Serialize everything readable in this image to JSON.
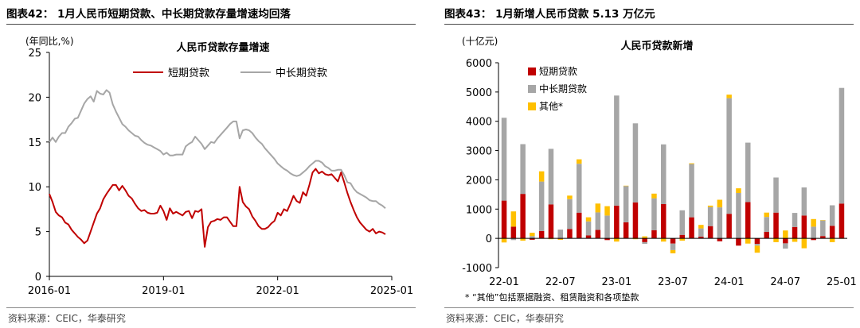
{
  "left_panel": {
    "heading": "图表42： 1月人民币短期贷款、中长期贷款存量增速均回落",
    "source": "资料来源：CEIC，华泰研究"
  },
  "right_panel": {
    "heading": "图表43： 1月新增人民币贷款 5.13 万亿元",
    "source": "资料来源：CEIC，华泰研究",
    "footnote": "* “其他”包括票据融资、租赁融资和各项垫款"
  },
  "colors": {
    "short": "#c00000",
    "long": "#a6a6a6",
    "other": "#ffc000",
    "axis": "#000000"
  },
  "chart_data": [
    {
      "type": "line",
      "title": "人民币贷款存量增速",
      "ylabel": "(年同比,%)",
      "xlabel": "",
      "x_unit": "months since 2016-01",
      "xlim": [
        0,
        108
      ],
      "ylim": [
        0,
        25
      ],
      "yticks": [
        0,
        5,
        10,
        15,
        20,
        25
      ],
      "xticks": [
        {
          "x": 0,
          "label": "2016-01"
        },
        {
          "x": 36,
          "label": "2019-01"
        },
        {
          "x": 72,
          "label": "2022-01"
        },
        {
          "x": 108,
          "label": "2025-01"
        }
      ],
      "grid": false,
      "legend": "top",
      "series": [
        {
          "name": "短期贷款",
          "color": "#c00000",
          "points": [
            [
              0,
              9.2
            ],
            [
              1,
              8.3
            ],
            [
              2,
              7.2
            ],
            [
              3,
              6.8
            ],
            [
              4,
              6.6
            ],
            [
              5,
              6.0
            ],
            [
              6,
              5.8
            ],
            [
              7,
              5.2
            ],
            [
              8,
              4.8
            ],
            [
              9,
              4.4
            ],
            [
              10,
              4.1
            ],
            [
              11,
              3.7
            ],
            [
              12,
              4.0
            ],
            [
              13,
              5.0
            ],
            [
              14,
              6.0
            ],
            [
              15,
              7.0
            ],
            [
              16,
              7.6
            ],
            [
              17,
              8.6
            ],
            [
              18,
              9.2
            ],
            [
              19,
              9.7
            ],
            [
              20,
              10.2
            ],
            [
              21,
              10.2
            ],
            [
              22,
              9.6
            ],
            [
              23,
              10.1
            ],
            [
              24,
              9.6
            ],
            [
              25,
              9.0
            ],
            [
              26,
              8.7
            ],
            [
              27,
              8.1
            ],
            [
              28,
              7.6
            ],
            [
              29,
              7.3
            ],
            [
              30,
              7.4
            ],
            [
              31,
              7.1
            ],
            [
              32,
              7.0
            ],
            [
              33,
              7.0
            ],
            [
              34,
              7.1
            ],
            [
              35,
              7.9
            ],
            [
              36,
              7.3
            ],
            [
              37,
              6.3
            ],
            [
              38,
              7.6
            ],
            [
              39,
              7.0
            ],
            [
              40,
              7.2
            ],
            [
              41,
              7.0
            ],
            [
              42,
              6.8
            ],
            [
              43,
              7.2
            ],
            [
              44,
              7.3
            ],
            [
              45,
              6.5
            ],
            [
              46,
              7.3
            ],
            [
              47,
              7.2
            ],
            [
              48,
              7.5
            ],
            [
              49,
              3.3
            ],
            [
              50,
              5.5
            ],
            [
              51,
              6.1
            ],
            [
              52,
              6.2
            ],
            [
              53,
              6.4
            ],
            [
              54,
              6.3
            ],
            [
              55,
              6.6
            ],
            [
              56,
              6.6
            ],
            [
              57,
              6.1
            ],
            [
              58,
              5.6
            ],
            [
              59,
              5.6
            ],
            [
              60,
              10.0
            ],
            [
              61,
              8.3
            ],
            [
              62,
              7.8
            ],
            [
              63,
              7.5
            ],
            [
              64,
              6.7
            ],
            [
              65,
              6.2
            ],
            [
              66,
              5.6
            ],
            [
              67,
              5.3
            ],
            [
              68,
              5.3
            ],
            [
              69,
              5.5
            ],
            [
              70,
              5.9
            ],
            [
              71,
              6.2
            ],
            [
              72,
              7.1
            ],
            [
              73,
              6.8
            ],
            [
              74,
              7.5
            ],
            [
              75,
              7.3
            ],
            [
              76,
              8.1
            ],
            [
              77,
              9.0
            ],
            [
              78,
              8.4
            ],
            [
              79,
              8.2
            ],
            [
              80,
              9.4
            ],
            [
              81,
              9.0
            ],
            [
              82,
              10.2
            ],
            [
              83,
              11.6
            ],
            [
              84,
              12.0
            ],
            [
              85,
              11.5
            ],
            [
              86,
              11.7
            ],
            [
              87,
              11.4
            ],
            [
              88,
              11.3
            ],
            [
              89,
              11.4
            ],
            [
              90,
              11.0
            ],
            [
              91,
              10.6
            ],
            [
              92,
              11.6
            ],
            [
              93,
              10.5
            ],
            [
              94,
              9.3
            ],
            [
              95,
              8.3
            ],
            [
              96,
              7.4
            ],
            [
              97,
              6.6
            ],
            [
              98,
              6.0
            ],
            [
              99,
              5.6
            ],
            [
              100,
              5.2
            ],
            [
              101,
              5.0
            ],
            [
              102,
              5.3
            ],
            [
              103,
              4.8
            ],
            [
              104,
              5.0
            ],
            [
              105,
              4.9
            ],
            [
              106,
              4.7
            ]
          ]
        },
        {
          "name": "中长期贷款",
          "color": "#a6a6a6",
          "points": [
            [
              0,
              15.0
            ],
            [
              1,
              15.5
            ],
            [
              2,
              15.0
            ],
            [
              3,
              15.6
            ],
            [
              4,
              16.0
            ],
            [
              5,
              16.0
            ],
            [
              6,
              16.7
            ],
            [
              7,
              17.1
            ],
            [
              8,
              17.6
            ],
            [
              9,
              17.7
            ],
            [
              10,
              18.5
            ],
            [
              11,
              19.3
            ],
            [
              12,
              19.8
            ],
            [
              13,
              20.1
            ],
            [
              14,
              19.5
            ],
            [
              15,
              20.7
            ],
            [
              16,
              20.4
            ],
            [
              17,
              20.3
            ],
            [
              18,
              20.8
            ],
            [
              19,
              20.5
            ],
            [
              20,
              19.2
            ],
            [
              21,
              18.4
            ],
            [
              22,
              17.7
            ],
            [
              23,
              17.0
            ],
            [
              24,
              16.7
            ],
            [
              25,
              16.3
            ],
            [
              26,
              16.0
            ],
            [
              27,
              15.7
            ],
            [
              28,
              15.6
            ],
            [
              29,
              15.2
            ],
            [
              30,
              14.9
            ],
            [
              31,
              14.7
            ],
            [
              32,
              14.6
            ],
            [
              33,
              14.4
            ],
            [
              34,
              14.2
            ],
            [
              35,
              14.0
            ],
            [
              36,
              13.6
            ],
            [
              37,
              13.8
            ],
            [
              38,
              13.5
            ],
            [
              39,
              13.5
            ],
            [
              40,
              13.6
            ],
            [
              41,
              13.6
            ],
            [
              42,
              13.6
            ],
            [
              43,
              14.5
            ],
            [
              44,
              14.8
            ],
            [
              45,
              15.0
            ],
            [
              46,
              15.6
            ],
            [
              47,
              15.2
            ],
            [
              48,
              14.8
            ],
            [
              49,
              14.2
            ],
            [
              50,
              14.6
            ],
            [
              51,
              15.0
            ],
            [
              52,
              14.9
            ],
            [
              53,
              15.4
            ],
            [
              54,
              15.8
            ],
            [
              55,
              16.2
            ],
            [
              56,
              16.6
            ],
            [
              57,
              17.0
            ],
            [
              58,
              17.3
            ],
            [
              59,
              17.3
            ],
            [
              60,
              15.4
            ],
            [
              61,
              16.3
            ],
            [
              62,
              16.4
            ],
            [
              63,
              16.3
            ],
            [
              64,
              16.0
            ],
            [
              65,
              15.5
            ],
            [
              66,
              15.1
            ],
            [
              67,
              14.8
            ],
            [
              68,
              14.3
            ],
            [
              69,
              13.9
            ],
            [
              70,
              13.5
            ],
            [
              71,
              13.1
            ],
            [
              72,
              12.6
            ],
            [
              73,
              12.3
            ],
            [
              74,
              12.0
            ],
            [
              75,
              11.8
            ],
            [
              76,
              11.5
            ],
            [
              77,
              11.3
            ],
            [
              78,
              11.2
            ],
            [
              79,
              11.3
            ],
            [
              80,
              11.6
            ],
            [
              81,
              11.9
            ],
            [
              82,
              12.3
            ],
            [
              83,
              12.6
            ],
            [
              84,
              12.9
            ],
            [
              85,
              12.9
            ],
            [
              86,
              12.7
            ],
            [
              87,
              12.3
            ],
            [
              88,
              12.1
            ],
            [
              89,
              11.8
            ],
            [
              90,
              11.8
            ],
            [
              91,
              11.9
            ],
            [
              92,
              11.9
            ],
            [
              93,
              11.3
            ],
            [
              94,
              10.5
            ],
            [
              95,
              10.4
            ],
            [
              96,
              9.8
            ],
            [
              97,
              9.4
            ],
            [
              98,
              9.2
            ],
            [
              99,
              9.0
            ],
            [
              100,
              8.8
            ],
            [
              101,
              8.5
            ],
            [
              102,
              8.4
            ],
            [
              103,
              8.4
            ],
            [
              104,
              8.1
            ],
            [
              105,
              7.9
            ],
            [
              106,
              7.6
            ]
          ]
        }
      ]
    },
    {
      "type": "bar",
      "stacked": true,
      "title": "人民币贷款新增",
      "ylabel": "(十亿元)",
      "xlabel": "",
      "ylim": [
        -1000,
        6000
      ],
      "yticks": [
        -1000,
        0,
        1000,
        2000,
        3000,
        4000,
        5000,
        6000
      ],
      "grid": false,
      "legend": "top-left",
      "categories": [
        "2022-01",
        "2022-02",
        "2022-03",
        "2022-04",
        "2022-05",
        "2022-06",
        "2022-07",
        "2022-08",
        "2022-09",
        "2022-10",
        "2022-11",
        "2022-12",
        "2023-01",
        "2023-02",
        "2023-03",
        "2023-04",
        "2023-05",
        "2023-06",
        "2023-07",
        "2023-08",
        "2023-09",
        "2023-10",
        "2023-11",
        "2023-12",
        "2024-01",
        "2024-02",
        "2024-03",
        "2024-04",
        "2024-05",
        "2024-06",
        "2024-07",
        "2024-08",
        "2024-09",
        "2024-10",
        "2024-11",
        "2024-12",
        "2025-01"
      ],
      "x_tick_labels": [
        {
          "index": 0,
          "label": "22-01"
        },
        {
          "index": 6,
          "label": "22-07"
        },
        {
          "index": 12,
          "label": "23-01"
        },
        {
          "index": 18,
          "label": "23-07"
        },
        {
          "index": 24,
          "label": "24-01"
        },
        {
          "index": 30,
          "label": "24-07"
        },
        {
          "index": 36,
          "label": "25-01"
        }
      ],
      "series": [
        {
          "name": "短期贷款",
          "color": "#c00000",
          "values": [
            1290,
            400,
            1520,
            -50,
            250,
            1160,
            -20,
            320,
            880,
            100,
            290,
            -60,
            1120,
            550,
            1230,
            -130,
            280,
            1170,
            -180,
            120,
            720,
            60,
            420,
            -100,
            840,
            -250,
            1240,
            -190,
            220,
            880,
            -170,
            390,
            780,
            -60,
            80,
            430,
            1190
          ]
        },
        {
          "name": "中长期贷款",
          "color": "#a6a6a6",
          "values": [
            2830,
            -60,
            1700,
            80,
            1690,
            1900,
            300,
            1020,
            1670,
            480,
            600,
            780,
            3760,
            1240,
            2700,
            -60,
            1090,
            2040,
            -220,
            840,
            1820,
            280,
            650,
            1060,
            3950,
            1550,
            2030,
            -60,
            510,
            1200,
            -180,
            480,
            960,
            400,
            540,
            700,
            3950
          ]
        },
        {
          "name": "其他*",
          "color": "#ffc000",
          "values": [
            -140,
            520,
            -80,
            110,
            350,
            -30,
            -30,
            120,
            150,
            140,
            300,
            320,
            -110,
            10,
            -30,
            70,
            160,
            -110,
            -110,
            -80,
            25,
            120,
            50,
            260,
            120,
            160,
            -180,
            -240,
            150,
            -130,
            270,
            -120,
            -340,
            260,
            0,
            -130,
            -10
          ]
        }
      ]
    }
  ]
}
